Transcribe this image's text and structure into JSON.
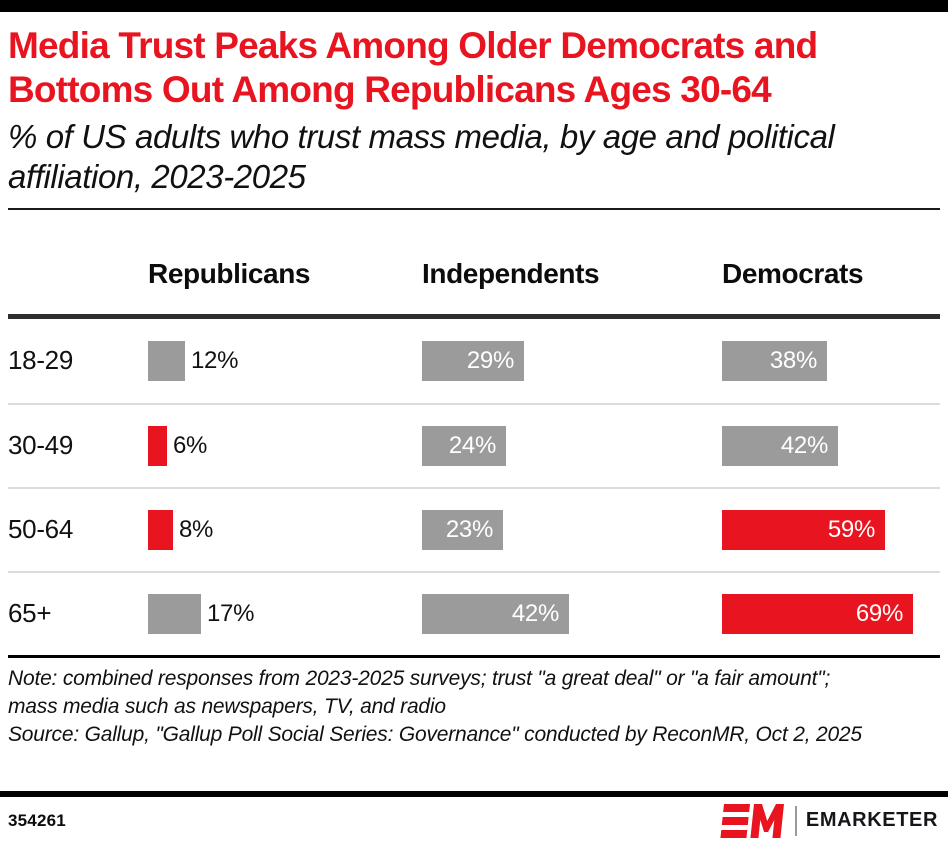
{
  "header": {
    "title": "Media Trust Peaks Among Older Democrats and Bottoms Out Among Republicans Ages 30-64",
    "subtitle": "% of US adults who trust mass media, by age and political affiliation, 2023-2025"
  },
  "chart_data": {
    "type": "bar",
    "title": "Media Trust Peaks Among Older Democrats and Bottoms Out Among Republicans Ages 30-64",
    "subtitle": "% of US adults who trust mass media, by age and political affiliation, 2023-2025",
    "unit": "%",
    "categories": [
      "18-29",
      "30-49",
      "50-64",
      "65+"
    ],
    "series": [
      {
        "name": "Republicans",
        "values": [
          12,
          6,
          8,
          17
        ],
        "highlighted": [
          false,
          true,
          true,
          false
        ]
      },
      {
        "name": "Independents",
        "values": [
          29,
          24,
          23,
          42
        ],
        "highlighted": [
          false,
          false,
          false,
          false
        ]
      },
      {
        "name": "Democrats",
        "values": [
          38,
          42,
          59,
          69
        ],
        "highlighted": [
          false,
          false,
          true,
          true
        ]
      }
    ],
    "value_range": [
      0,
      100
    ],
    "grid": false,
    "legend_position": "column-headers",
    "colors": {
      "default": "#9b9b9b",
      "highlight": "#e8141f",
      "label_inside": "#ffffff",
      "label_outside": "#111111"
    }
  },
  "footer": {
    "note": "Note: combined responses from 2023-2025 surveys; trust \"a great deal\" or \"a fair amount\"; mass media such as newspapers, TV, and radio",
    "source": "Source: Gallup, \"Gallup Poll Social Series: Governance\" conducted by ReconMR, Oct 2, 2025",
    "chart_id": "354261",
    "brand": "EMARKETER"
  }
}
